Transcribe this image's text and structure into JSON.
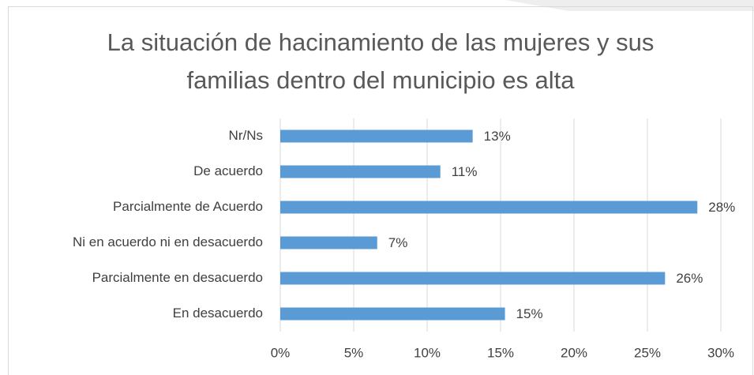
{
  "chart_data": {
    "type": "barh",
    "title": "La situación de hacinamiento de las mujeres y sus familias dentro del municipio es alta",
    "categories": [
      "Nr/Ns",
      "De acuerdo",
      "Parcialmente de Acuerdo",
      "Ni en acuerdo ni en desacuerdo",
      "Parcialmente en desacuerdo",
      "En desacuerdo"
    ],
    "values": [
      13.1,
      10.9,
      28.4,
      6.6,
      26.2,
      15.3
    ],
    "value_labels": [
      "13%",
      "11%",
      "28%",
      "7%",
      "26%",
      "15%"
    ],
    "color": "#5b9bd5",
    "xlim": [
      0,
      30
    ],
    "xticks": [
      {
        "value": 0,
        "label": "0%"
      },
      {
        "value": 5,
        "label": "5%"
      },
      {
        "value": 10,
        "label": "10%"
      },
      {
        "value": 15,
        "label": "15%"
      },
      {
        "value": 20,
        "label": "20%"
      },
      {
        "value": 25,
        "label": "25%"
      },
      {
        "value": 30,
        "label": "30%"
      }
    ],
    "grid": true
  }
}
